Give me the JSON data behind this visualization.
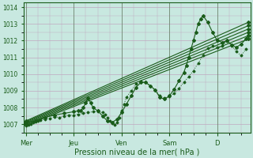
{
  "xlabel": "Pression niveau de la mer( hPa )",
  "bg_color": "#c8e8e0",
  "grid_color": "#c0a8c0",
  "line_color": "#1a5c1a",
  "ylim": [
    1006.5,
    1014.3
  ],
  "yticks": [
    1007,
    1008,
    1009,
    1010,
    1011,
    1012,
    1013,
    1014
  ],
  "xtick_labels": [
    "Mer",
    "Jeu",
    "Ven",
    "Sam",
    "D"
  ],
  "xtick_positions": [
    0.0,
    1.0,
    2.0,
    3.0,
    4.0
  ],
  "xlim": [
    -0.05,
    4.7
  ],
  "lines": [
    {
      "x": [
        0.0,
        0.05,
        0.1,
        0.15,
        0.2,
        0.25,
        0.3,
        0.4,
        0.5,
        0.6,
        0.7,
        0.8,
        0.9,
        1.0,
        1.1,
        1.2,
        1.3,
        1.4,
        1.5,
        1.6,
        1.65,
        1.7,
        1.75,
        1.8,
        1.85,
        1.9,
        1.95,
        2.0,
        2.05,
        2.1,
        2.2,
        2.3,
        2.4,
        2.5,
        2.6,
        2.7,
        2.8,
        2.9,
        3.0,
        3.1,
        3.2,
        3.3,
        3.4,
        3.5,
        3.6,
        3.7,
        3.8,
        3.9,
        4.0,
        4.1,
        4.2,
        4.3,
        4.4,
        4.5,
        4.6
      ],
      "y": [
        1006.9,
        1006.95,
        1007.0,
        1007.1,
        1007.15,
        1007.2,
        1007.25,
        1007.3,
        1007.35,
        1007.45,
        1007.4,
        1007.5,
        1007.55,
        1007.55,
        1007.6,
        1007.65,
        1007.7,
        1007.75,
        1007.75,
        1007.7,
        1007.6,
        1007.4,
        1007.2,
        1007.05,
        1006.95,
        1007.1,
        1007.4,
        1007.8,
        1008.2,
        1008.6,
        1009.0,
        1009.4,
        1009.55,
        1009.5,
        1009.3,
        1009.05,
        1008.7,
        1008.55,
        1008.65,
        1008.85,
        1009.15,
        1009.5,
        1009.85,
        1010.2,
        1010.65,
        1011.1,
        1011.55,
        1011.7,
        1011.6,
        1011.7,
        1011.95,
        1011.7,
        1011.35,
        1011.1,
        1011.5
      ],
      "style": "dotted",
      "marker": "D",
      "markersize": 1.5,
      "lw": 0.7
    },
    {
      "x": [
        0.0,
        4.65
      ],
      "y": [
        1006.95,
        1012.1
      ],
      "style": "solid",
      "marker": "D",
      "markersize": 2,
      "lw": 0.8
    },
    {
      "x": [
        0.0,
        4.65
      ],
      "y": [
        1007.0,
        1012.3
      ],
      "style": "solid",
      "marker": "D",
      "markersize": 2,
      "lw": 0.8
    },
    {
      "x": [
        0.0,
        4.65
      ],
      "y": [
        1007.05,
        1012.5
      ],
      "style": "solid",
      "marker": "D",
      "markersize": 2,
      "lw": 0.8
    },
    {
      "x": [
        0.0,
        4.65
      ],
      "y": [
        1007.1,
        1012.7
      ],
      "style": "solid",
      "marker": "D",
      "markersize": 2,
      "lw": 0.8
    },
    {
      "x": [
        0.0,
        4.65
      ],
      "y": [
        1007.15,
        1012.9
      ],
      "style": "solid",
      "marker": "D",
      "markersize": 2,
      "lw": 0.8
    },
    {
      "x": [
        0.0,
        4.65
      ],
      "y": [
        1007.2,
        1013.1
      ],
      "style": "solid",
      "marker": "D",
      "markersize": 2,
      "lw": 0.8
    },
    {
      "x": [
        0.0,
        0.2,
        0.4,
        0.6,
        0.8,
        1.0,
        1.1,
        1.15,
        1.2,
        1.25,
        1.3,
        1.35,
        1.4,
        1.5,
        1.6,
        1.7,
        1.8,
        1.9,
        2.0,
        2.1,
        2.2,
        2.3,
        2.4,
        2.5,
        2.6,
        2.7,
        2.8,
        2.9,
        3.0,
        3.1,
        3.2,
        3.3,
        3.35,
        3.4,
        3.45,
        3.5,
        3.55,
        3.6,
        3.65,
        3.7,
        3.8,
        3.9,
        4.0,
        4.1,
        4.2,
        4.3,
        4.4,
        4.5,
        4.6,
        4.65
      ],
      "y": [
        1007.1,
        1007.2,
        1007.4,
        1007.55,
        1007.65,
        1007.75,
        1007.8,
        1007.8,
        1008.0,
        1008.3,
        1008.55,
        1008.3,
        1008.0,
        1007.8,
        1007.5,
        1007.2,
        1007.1,
        1007.3,
        1007.7,
        1008.2,
        1008.7,
        1009.2,
        1009.5,
        1009.5,
        1009.3,
        1009.05,
        1008.6,
        1008.5,
        1008.7,
        1009.1,
        1009.6,
        1010.1,
        1010.5,
        1011.0,
        1011.5,
        1012.0,
        1012.5,
        1013.0,
        1013.3,
        1013.5,
        1013.1,
        1012.5,
        1012.0,
        1011.9,
        1012.0,
        1011.75,
        1011.6,
        1011.8,
        1012.1,
        1012.3
      ],
      "style": "solid",
      "marker": "D",
      "markersize": 2,
      "lw": 0.8
    }
  ]
}
